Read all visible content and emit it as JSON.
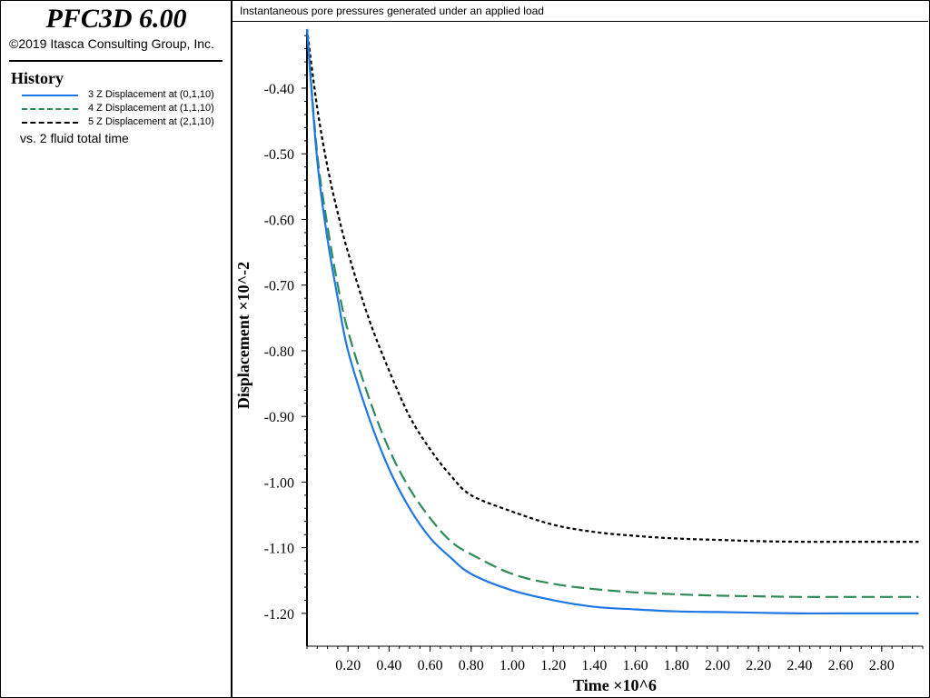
{
  "app": {
    "title": "PFC3D 6.00",
    "copyright": "©2019 Itasca Consulting Group, Inc."
  },
  "history": {
    "heading": "History",
    "vs_label": "vs. 2 fluid total time"
  },
  "colors": {
    "series1": "#1f77e4",
    "series2": "#2e8b57",
    "series3": "#000000"
  },
  "chart_data": {
    "type": "line",
    "title": "Instantaneous pore pressures generated under an applied load",
    "xlabel": "Time ×10^6",
    "ylabel": "Displacement ×10^-2",
    "xlim": [
      0.0,
      3.0
    ],
    "ylim": [
      -1.25,
      -0.31
    ],
    "x_ticks": [
      0.2,
      0.4,
      0.6,
      0.8,
      1.0,
      1.2,
      1.4,
      1.6,
      1.8,
      2.0,
      2.2,
      2.4,
      2.6,
      2.8
    ],
    "x_tick_labels": [
      "0.20",
      "0.40",
      "0.60",
      "0.80",
      "1.00",
      "1.20",
      "1.40",
      "1.60",
      "1.80",
      "2.00",
      "2.20",
      "2.40",
      "2.60",
      "2.80"
    ],
    "y_ticks": [
      -0.4,
      -0.5,
      -0.6,
      -0.7,
      -0.8,
      -0.9,
      -1.0,
      -1.1,
      -1.2
    ],
    "y_tick_labels": [
      "-0.40",
      "-0.50",
      "-0.60",
      "-0.70",
      "-0.80",
      "-0.90",
      "-1.00",
      "-1.10",
      "-1.20"
    ],
    "x": [
      0.0,
      0.05,
      0.1,
      0.15,
      0.2,
      0.3,
      0.4,
      0.5,
      0.6,
      0.7,
      0.8,
      1.0,
      1.2,
      1.4,
      1.6,
      1.8,
      2.0,
      2.2,
      2.4,
      2.6,
      2.8,
      2.98
    ],
    "series": [
      {
        "name": "3 Z Displacement at (0,1,10)",
        "style": "solid",
        "values": [
          -0.31,
          -0.51,
          -0.63,
          -0.72,
          -0.8,
          -0.9,
          -0.98,
          -1.04,
          -1.085,
          -1.115,
          -1.14,
          -1.165,
          -1.18,
          -1.19,
          -1.194,
          -1.197,
          -1.198,
          -1.199,
          -1.2,
          -1.2,
          -1.2,
          -1.2
        ]
      },
      {
        "name": "4 Z Displacement at (1,1,10)",
        "style": "dashed",
        "values": [
          -0.31,
          -0.5,
          -0.61,
          -0.7,
          -0.77,
          -0.87,
          -0.95,
          -1.01,
          -1.055,
          -1.09,
          -1.11,
          -1.14,
          -1.155,
          -1.163,
          -1.168,
          -1.171,
          -1.173,
          -1.174,
          -1.175,
          -1.175,
          -1.175,
          -1.175
        ]
      },
      {
        "name": "5 Z Displacement at (2,1,10)",
        "style": "dotted",
        "values": [
          -0.31,
          -0.43,
          -0.52,
          -0.59,
          -0.65,
          -0.75,
          -0.83,
          -0.9,
          -0.95,
          -0.99,
          -1.02,
          -1.045,
          -1.065,
          -1.076,
          -1.082,
          -1.086,
          -1.088,
          -1.09,
          -1.091,
          -1.091,
          -1.091,
          -1.091
        ]
      }
    ]
  }
}
